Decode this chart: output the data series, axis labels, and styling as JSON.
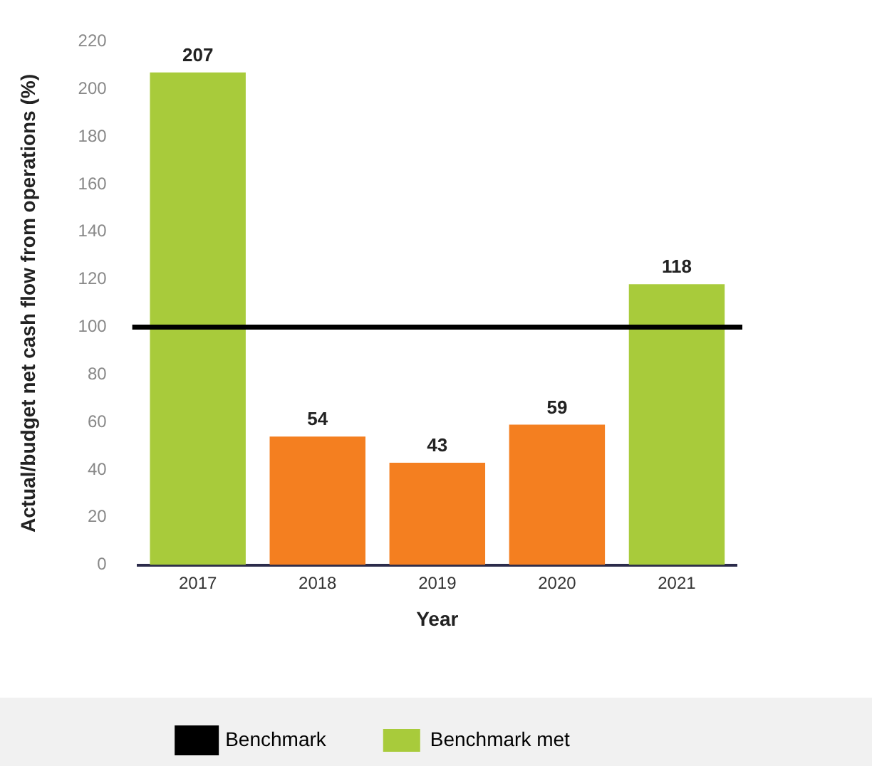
{
  "chart_data": {
    "type": "bar",
    "xlabel": "Year",
    "ylabel": "Actual/budget net cash flow from operations (%)",
    "categories": [
      "2017",
      "2018",
      "2019",
      "2020",
      "2021"
    ],
    "series": [
      {
        "name": "Benchmark met",
        "color": "#a8cb3b",
        "values": [
          207,
          null,
          null,
          null,
          118
        ]
      },
      {
        "color": "#f47f20",
        "values": [
          null,
          54,
          43,
          59,
          null
        ]
      }
    ],
    "ylim": [
      0,
      220
    ],
    "yticks": [
      0,
      20,
      40,
      60,
      80,
      100,
      120,
      140,
      160,
      180,
      200,
      220
    ],
    "ref_lines": [
      {
        "axis": "y",
        "value": 100,
        "label": "Benchmark",
        "color": "#000000"
      }
    ],
    "data_labels": true,
    "grid": false,
    "legend": "bottom"
  }
}
